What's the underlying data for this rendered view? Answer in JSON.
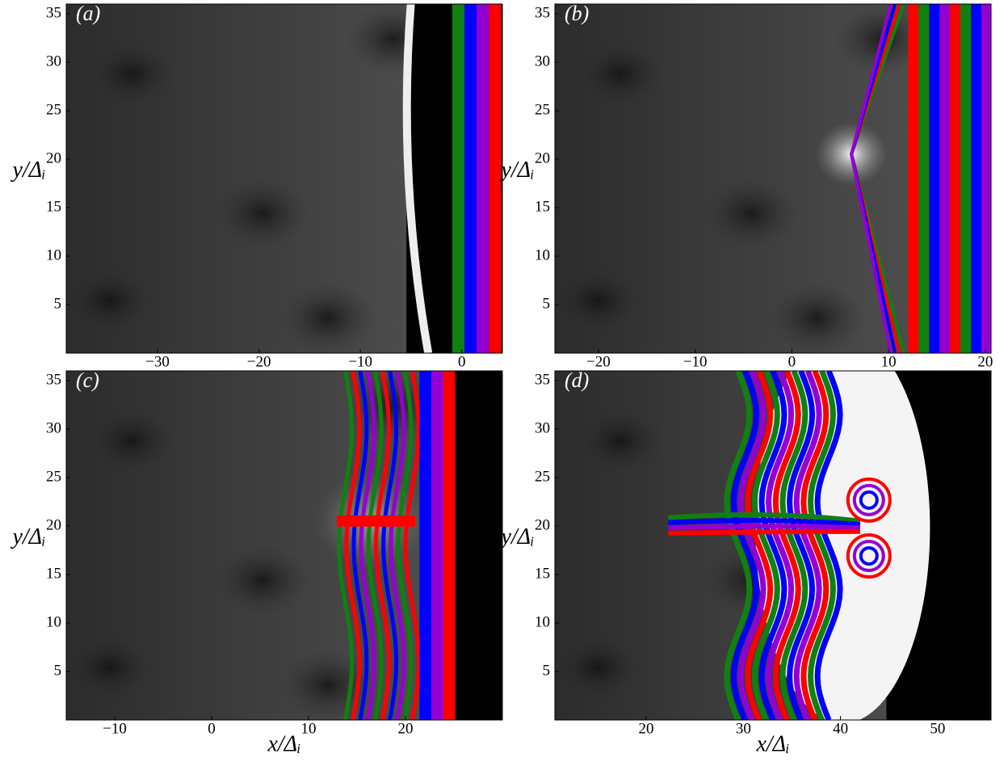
{
  "chart_data": [
    {
      "type": "image",
      "panel_label": "(a)",
      "ylabel": "y/Δᵢ",
      "xlim": [
        -39,
        4
      ],
      "ylim": [
        0,
        36
      ],
      "xticks": [
        {
          "value": -30,
          "label": "−30"
        },
        {
          "value": -20,
          "label": "−20"
        },
        {
          "value": -10,
          "label": "−10"
        },
        0
      ],
      "yticks": [
        5,
        10,
        15,
        20,
        25,
        30,
        35
      ]
    },
    {
      "type": "image",
      "panel_label": "(b)",
      "ylabel": "y/Δᵢ",
      "xlim": [
        -24.5,
        20.6
      ],
      "ylim": [
        0,
        36
      ],
      "xticks": [
        {
          "value": -20,
          "label": "−20"
        },
        {
          "value": -10,
          "label": "−10"
        },
        0,
        10,
        20
      ],
      "yticks": [
        5,
        10,
        15,
        20,
        25,
        30,
        35
      ]
    },
    {
      "type": "image",
      "panel_label": "(c)",
      "ylabel": "y/Δᵢ",
      "xlabel": "x/Δᵢ",
      "xlim": [
        -15,
        30
      ],
      "ylim": [
        0,
        36
      ],
      "xticks": [
        {
          "value": -10,
          "label": "−10"
        },
        0,
        10,
        20
      ],
      "yticks": [
        5,
        10,
        15,
        20,
        25,
        30,
        35
      ]
    },
    {
      "type": "image",
      "panel_label": "(d)",
      "ylabel": "y/Δᵢ",
      "xlabel": "x/Δᵢ",
      "xlim": [
        10.6,
        55.5
      ],
      "ylim": [
        0,
        36
      ],
      "xticks": [
        20,
        30,
        40,
        50
      ],
      "yticks": [
        5,
        10,
        15,
        20,
        25,
        30,
        35
      ]
    }
  ]
}
